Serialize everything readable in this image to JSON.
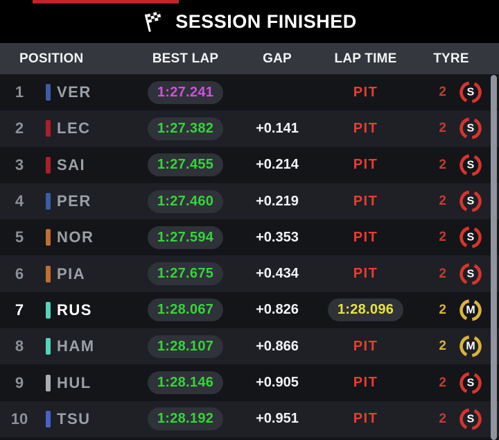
{
  "session_banner": {
    "label": "SESSION FINISHED",
    "flag": "checkered-flag"
  },
  "table": {
    "columns": [
      "POSITION",
      "BEST LAP",
      "GAP",
      "LAP TIME",
      "TYRE"
    ],
    "rows": [
      {
        "position": "1",
        "driver": "VER",
        "team": "red-bull",
        "team_color": "#3C5CA6",
        "best_lap": "1:27.241",
        "best_lap_style": "fastest",
        "gap": "",
        "lap_type": "pit",
        "lap_value": "PIT",
        "stint": "2",
        "tyre": "S",
        "highlight": false
      },
      {
        "position": "2",
        "driver": "LEC",
        "team": "ferrari",
        "team_color": "#AC1F28",
        "best_lap": "1:27.382",
        "best_lap_style": "personal",
        "gap": "+0.141",
        "lap_type": "pit",
        "lap_value": "PIT",
        "stint": "2",
        "tyre": "S",
        "highlight": false
      },
      {
        "position": "3",
        "driver": "SAI",
        "team": "ferrari",
        "team_color": "#AC1F28",
        "best_lap": "1:27.455",
        "best_lap_style": "personal",
        "gap": "+0.214",
        "lap_type": "pit",
        "lap_value": "PIT",
        "stint": "2",
        "tyre": "S",
        "highlight": false
      },
      {
        "position": "4",
        "driver": "PER",
        "team": "red-bull",
        "team_color": "#3C5CA6",
        "best_lap": "1:27.460",
        "best_lap_style": "personal",
        "gap": "+0.219",
        "lap_type": "pit",
        "lap_value": "PIT",
        "stint": "2",
        "tyre": "S",
        "highlight": false
      },
      {
        "position": "5",
        "driver": "NOR",
        "team": "mclaren",
        "team_color": "#BE702C",
        "best_lap": "1:27.594",
        "best_lap_style": "personal",
        "gap": "+0.353",
        "lap_type": "pit",
        "lap_value": "PIT",
        "stint": "2",
        "tyre": "S",
        "highlight": false
      },
      {
        "position": "6",
        "driver": "PIA",
        "team": "mclaren",
        "team_color": "#BE702C",
        "best_lap": "1:27.675",
        "best_lap_style": "personal",
        "gap": "+0.434",
        "lap_type": "pit",
        "lap_value": "PIT",
        "stint": "2",
        "tyre": "S",
        "highlight": false
      },
      {
        "position": "7",
        "driver": "RUS",
        "team": "mercedes",
        "team_color": "#54D5B9",
        "best_lap": "1:28.067",
        "best_lap_style": "personal",
        "gap": "+0.826",
        "lap_type": "time",
        "lap_value": "1:28.096",
        "stint": "2",
        "tyre": "M",
        "highlight": true
      },
      {
        "position": "8",
        "driver": "HAM",
        "team": "mercedes",
        "team_color": "#54D5B9",
        "best_lap": "1:28.107",
        "best_lap_style": "personal",
        "gap": "+0.866",
        "lap_type": "pit",
        "lap_value": "PIT",
        "stint": "2",
        "tyre": "M",
        "highlight": false
      },
      {
        "position": "9",
        "driver": "HUL",
        "team": "haas",
        "team_color": "#A9AEB3",
        "best_lap": "1:28.146",
        "best_lap_style": "personal",
        "gap": "+0.905",
        "lap_type": "pit",
        "lap_value": "PIT",
        "stint": "2",
        "tyre": "S",
        "highlight": false
      },
      {
        "position": "10",
        "driver": "TSU",
        "team": "rb",
        "team_color": "#4A62C4",
        "best_lap": "1:28.192",
        "best_lap_style": "personal",
        "gap": "+0.951",
        "lap_type": "pit",
        "lap_value": "PIT",
        "stint": "2",
        "tyre": "S",
        "highlight": false
      }
    ]
  },
  "colors": {
    "banner_bg": "#000000",
    "top_strip": "#C2242A",
    "header_bg": "#35373E",
    "row_dark": "#141519",
    "row_light": "#1E2026",
    "pill_bg": "#2F3238",
    "lap_green": "#35D43A",
    "lap_fastest": "#D14FDF",
    "lap_yellow": "#E9E23E",
    "pit_red": "#E93D30",
    "stint_red": "#C43B30",
    "stint_yellow": "#D8B435",
    "tyre_soft": "#D8342C",
    "tyre_medium": "#DDB339",
    "text_white": "#F2F3F5",
    "text_gray": "#9AA0A6",
    "pos_gray": "#8C9196",
    "scrollbar": "#8F949E"
  }
}
